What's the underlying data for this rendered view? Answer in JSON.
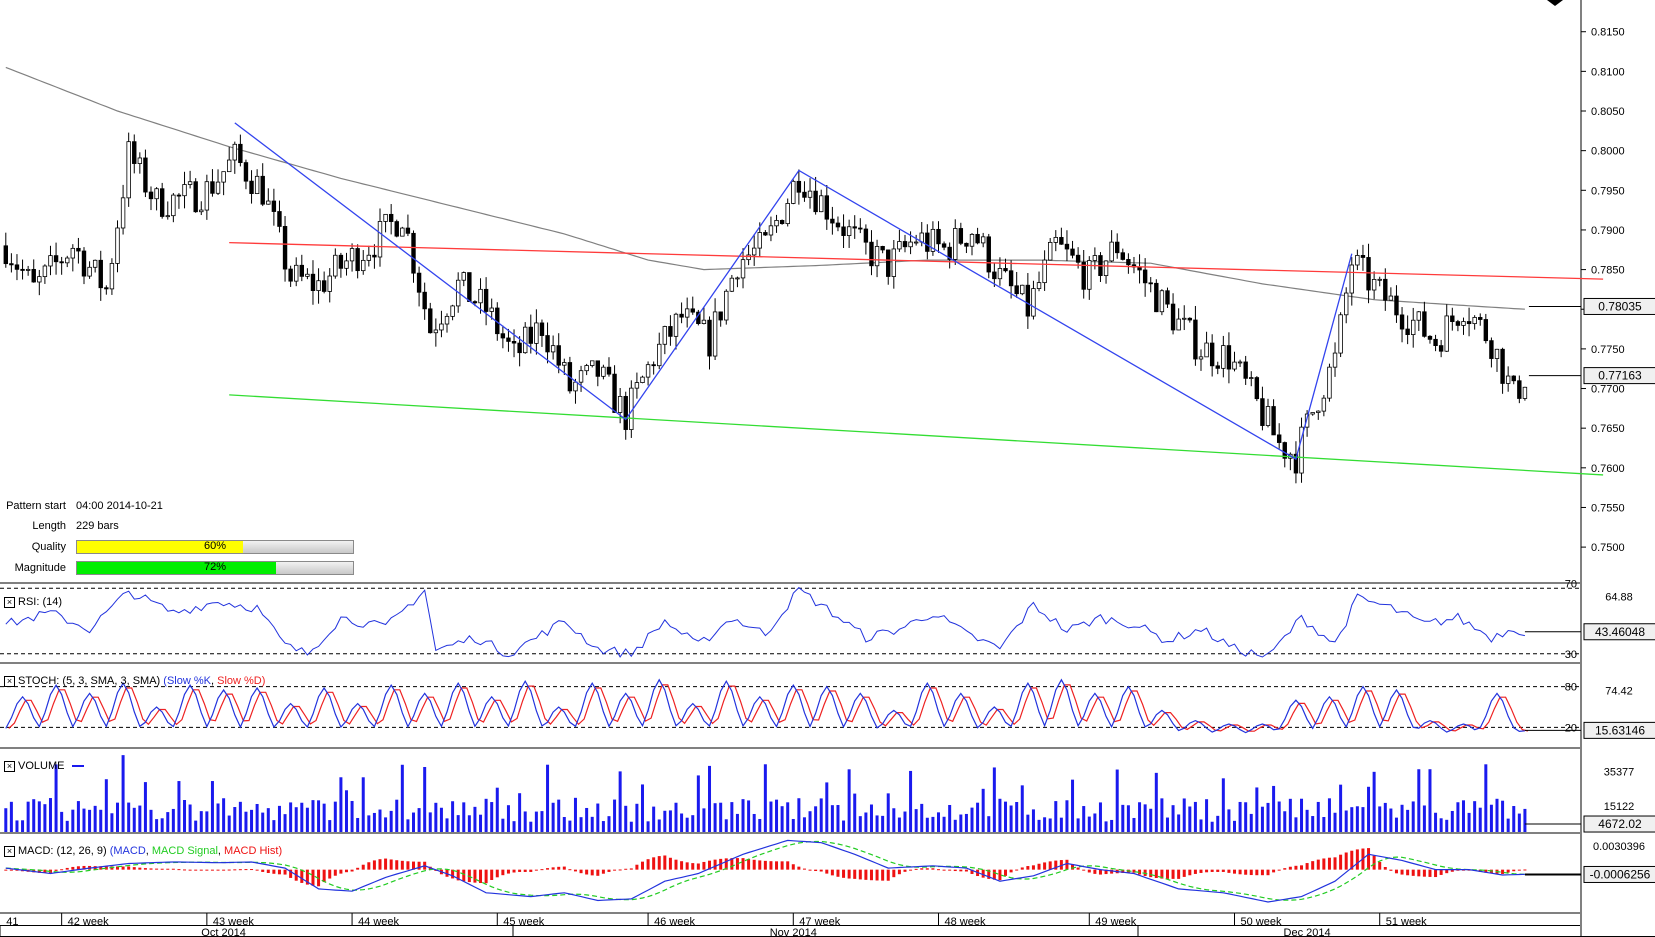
{
  "pattern_info": {
    "start_label": "Pattern start",
    "start_value": "04:00 2014-10-21",
    "length_label": "Length",
    "length_value": "229 bars",
    "quality_label": "Quality",
    "quality_value": "60%",
    "quality_fraction": 0.6,
    "magnitude_label": "Magnitude",
    "magnitude_value": "72%",
    "magnitude_fraction": 0.72
  },
  "colors": {
    "resistance": "#ff3b3b",
    "support": "#33dd33",
    "zigzag": "#3344ee",
    "ma": "#808080",
    "rsi": "#2233dd",
    "stoch_k": "#2233dd",
    "stoch_d": "#ee2222",
    "volume": "#1a1aee",
    "macd": "#2233dd",
    "macd_signal": "#22cc22",
    "macd_hist": "#ee1111",
    "quality_fill": "#ffff00",
    "magnitude_fill": "#00ee00"
  },
  "chart_data": [
    {
      "type": "candlestick",
      "name": "price",
      "ylim": [
        0.7456,
        0.819
      ],
      "y_ticks": [
        "0.8150",
        "0.8100",
        "0.8050",
        "0.8000",
        "0.7950",
        "0.7900",
        "0.7850",
        "0.7800",
        "0.7750",
        "0.7700",
        "0.7650",
        "0.7600",
        "0.7550",
        "0.7500"
      ],
      "last_value_label": "0.77163",
      "ma_value_label": "0.78035",
      "resistance_line": [
        [
          40,
          0.7884
        ],
        [
          286,
          0.7838
        ]
      ],
      "support_line": [
        [
          40,
          0.7692
        ],
        [
          286,
          0.7591
        ]
      ],
      "zigzag": [
        [
          41,
          0.8035
        ],
        [
          111,
          0.7661
        ],
        [
          142,
          0.7975
        ],
        [
          231,
          0.7611
        ],
        [
          241,
          0.787
        ]
      ],
      "close_path": [
        [
          0,
          0.788
        ],
        [
          5,
          0.7825
        ],
        [
          12,
          0.788
        ],
        [
          18,
          0.7825
        ],
        [
          22,
          0.7995
        ],
        [
          27,
          0.7935
        ],
        [
          32,
          0.794
        ],
        [
          36,
          0.795
        ],
        [
          41,
          0.799
        ],
        [
          46,
          0.795
        ],
        [
          51,
          0.784
        ],
        [
          56,
          0.783
        ],
        [
          61,
          0.786
        ],
        [
          66,
          0.7885
        ],
        [
          71,
          0.792
        ],
        [
          76,
          0.7775
        ],
        [
          81,
          0.783
        ],
        [
          86,
          0.78
        ],
        [
          91,
          0.774
        ],
        [
          96,
          0.778
        ],
        [
          101,
          0.77
        ],
        [
          106,
          0.772
        ],
        [
          111,
          0.7665
        ],
        [
          116,
          0.774
        ],
        [
          121,
          0.779
        ],
        [
          126,
          0.776
        ],
        [
          131,
          0.786
        ],
        [
          136,
          0.788
        ],
        [
          142,
          0.797
        ],
        [
          148,
          0.792
        ],
        [
          153,
          0.788
        ],
        [
          158,
          0.7855
        ],
        [
          163,
          0.789
        ],
        [
          168,
          0.7875
        ],
        [
          173,
          0.79
        ],
        [
          178,
          0.784
        ],
        [
          183,
          0.78
        ],
        [
          188,
          0.788
        ],
        [
          194,
          0.784
        ],
        [
          199,
          0.788
        ],
        [
          204,
          0.7835
        ],
        [
          209,
          0.779
        ],
        [
          214,
          0.775
        ],
        [
          219,
          0.774
        ],
        [
          224,
          0.768
        ],
        [
          228,
          0.763
        ],
        [
          231,
          0.7615
        ],
        [
          235,
          0.769
        ],
        [
          238,
          0.7735
        ],
        [
          241,
          0.786
        ],
        [
          246,
          0.782
        ],
        [
          251,
          0.779
        ],
        [
          256,
          0.776
        ],
        [
          261,
          0.7805
        ],
        [
          266,
          0.776
        ],
        [
          270,
          0.769
        ],
        [
          272,
          0.7715
        ]
      ],
      "ma_path": [
        [
          0,
          0.8105
        ],
        [
          20,
          0.805
        ],
        [
          40,
          0.8005
        ],
        [
          60,
          0.7965
        ],
        [
          80,
          0.793
        ],
        [
          100,
          0.7895
        ],
        [
          115,
          0.7862
        ],
        [
          125,
          0.785
        ],
        [
          145,
          0.7855
        ],
        [
          165,
          0.7862
        ],
        [
          185,
          0.7862
        ],
        [
          205,
          0.7858
        ],
        [
          225,
          0.7832
        ],
        [
          245,
          0.7812
        ],
        [
          265,
          0.7803
        ],
        [
          272,
          0.78
        ]
      ]
    },
    {
      "type": "line",
      "name": "RSI (14)",
      "title": "RSI: (14)",
      "ylim": [
        25,
        72
      ],
      "levels": [
        "70",
        "30"
      ],
      "tick": "64.88",
      "last_value_label": "43.46048",
      "path": [
        [
          0,
          48
        ],
        [
          8,
          55
        ],
        [
          15,
          45
        ],
        [
          22,
          68
        ],
        [
          30,
          55
        ],
        [
          38,
          62
        ],
        [
          45,
          58
        ],
        [
          50,
          35
        ],
        [
          54,
          30
        ],
        [
          60,
          52
        ],
        [
          68,
          46
        ],
        [
          75,
          69
        ],
        [
          77,
          32
        ],
        [
          84,
          40
        ],
        [
          90,
          30
        ],
        [
          100,
          50
        ],
        [
          106,
          33
        ],
        [
          112,
          30
        ],
        [
          118,
          50
        ],
        [
          124,
          35
        ],
        [
          130,
          52
        ],
        [
          136,
          42
        ],
        [
          142,
          69
        ],
        [
          148,
          55
        ],
        [
          154,
          40
        ],
        [
          160,
          45
        ],
        [
          166,
          55
        ],
        [
          172,
          42
        ],
        [
          178,
          33
        ],
        [
          184,
          60
        ],
        [
          190,
          44
        ],
        [
          196,
          52
        ],
        [
          202,
          48
        ],
        [
          208,
          38
        ],
        [
          214,
          45
        ],
        [
          220,
          33
        ],
        [
          226,
          28
        ],
        [
          232,
          52
        ],
        [
          238,
          36
        ],
        [
          242,
          64
        ],
        [
          248,
          58
        ],
        [
          254,
          48
        ],
        [
          260,
          52
        ],
        [
          266,
          40
        ],
        [
          270,
          46
        ],
        [
          272,
          43
        ]
      ]
    },
    {
      "type": "line",
      "name": "STOCH (5,3,SMA,3,SMA)",
      "title": "STOCH: (5, 3, SMA, 3, SMA)",
      "legend": [
        "Slow %K",
        "Slow %D"
      ],
      "ylim": [
        0,
        100
      ],
      "levels": [
        "80",
        "20"
      ],
      "tick": "74.42",
      "last_value_label": "15.63146",
      "k_centers": [
        3,
        9,
        15,
        21,
        27,
        33,
        39,
        45,
        51,
        57,
        63,
        69,
        75,
        81,
        87,
        93,
        99,
        105,
        111,
        117,
        123,
        129,
        135,
        141,
        147,
        153,
        159,
        165,
        171,
        177,
        183,
        189,
        195,
        201,
        207,
        213,
        219,
        225,
        231,
        237,
        243,
        249,
        255,
        261,
        267,
        272
      ],
      "k_peaks": [
        65,
        82,
        70,
        85,
        50,
        82,
        75,
        78,
        55,
        78,
        55,
        82,
        70,
        85,
        65,
        88,
        50,
        85,
        70,
        90,
        55,
        88,
        65,
        82,
        80,
        70,
        45,
        85,
        70,
        50,
        85,
        90,
        70,
        80,
        45,
        30,
        25,
        25,
        60,
        65,
        80,
        75,
        30,
        25,
        70,
        15
      ]
    },
    {
      "type": "bar",
      "name": "VOLUME",
      "title": "VOLUME",
      "ylim": [
        0,
        48000
      ],
      "ticks": [
        "35377",
        "15122"
      ],
      "last_value_label": "4672.02"
    },
    {
      "type": "line",
      "name": "MACD (12,26,9)",
      "title": "MACD: (12, 26, 9)",
      "legend": [
        "MACD",
        "MACD Signal",
        "MACD Hist"
      ],
      "ylim": [
        -0.0055,
        0.0045
      ],
      "tick": "0.0030396",
      "last_value_label": "-0.0006256",
      "path": [
        [
          0,
          0.0002
        ],
        [
          8,
          -0.0005
        ],
        [
          15,
          0.0002
        ],
        [
          22,
          0.0008
        ],
        [
          30,
          0.001
        ],
        [
          38,
          0.0009
        ],
        [
          44,
          0.001
        ],
        [
          50,
          0.0002
        ],
        [
          56,
          -0.0025
        ],
        [
          62,
          -0.0028
        ],
        [
          68,
          -0.001
        ],
        [
          75,
          0.0005
        ],
        [
          80,
          -0.0008
        ],
        [
          86,
          -0.003
        ],
        [
          94,
          -0.0035
        ],
        [
          100,
          -0.003
        ],
        [
          106,
          -0.004
        ],
        [
          112,
          -0.0038
        ],
        [
          118,
          -0.0015
        ],
        [
          124,
          -0.0005
        ],
        [
          132,
          0.002
        ],
        [
          140,
          0.0038
        ],
        [
          146,
          0.0035
        ],
        [
          152,
          0.002
        ],
        [
          158,
          0.0002
        ],
        [
          166,
          0.0005
        ],
        [
          172,
          0.0002
        ],
        [
          178,
          -0.0015
        ],
        [
          184,
          -0.0008
        ],
        [
          190,
          0.0008
        ],
        [
          196,
          0.0
        ],
        [
          202,
          -0.0005
        ],
        [
          210,
          -0.0025
        ],
        [
          218,
          -0.003
        ],
        [
          226,
          -0.0042
        ],
        [
          232,
          -0.0035
        ],
        [
          238,
          -0.0015
        ],
        [
          244,
          0.002
        ],
        [
          250,
          0.0012
        ],
        [
          256,
          0.0
        ],
        [
          262,
          0.0
        ],
        [
          268,
          -0.0007
        ],
        [
          272,
          -0.0006
        ]
      ]
    }
  ],
  "x_axis": {
    "week_labels": [
      {
        "bar": -1,
        "label": "41"
      },
      {
        "bar": 10,
        "label": "42 week"
      },
      {
        "bar": 36,
        "label": "43 week"
      },
      {
        "bar": 62,
        "label": "44 week"
      },
      {
        "bar": 88,
        "label": "45 week"
      },
      {
        "bar": 115,
        "label": "46 week"
      },
      {
        "bar": 141,
        "label": "47 week"
      },
      {
        "bar": 167,
        "label": "48 week"
      },
      {
        "bar": 194,
        "label": "49 week"
      },
      {
        "bar": 220,
        "label": "50 week"
      },
      {
        "bar": 246,
        "label": "51 week"
      }
    ],
    "month_labels": [
      {
        "bar": 39,
        "label": "Oct 2014"
      },
      {
        "bar": 141,
        "label": "Nov 2014"
      },
      {
        "bar": 233,
        "label": "Dec 2014"
      }
    ]
  }
}
